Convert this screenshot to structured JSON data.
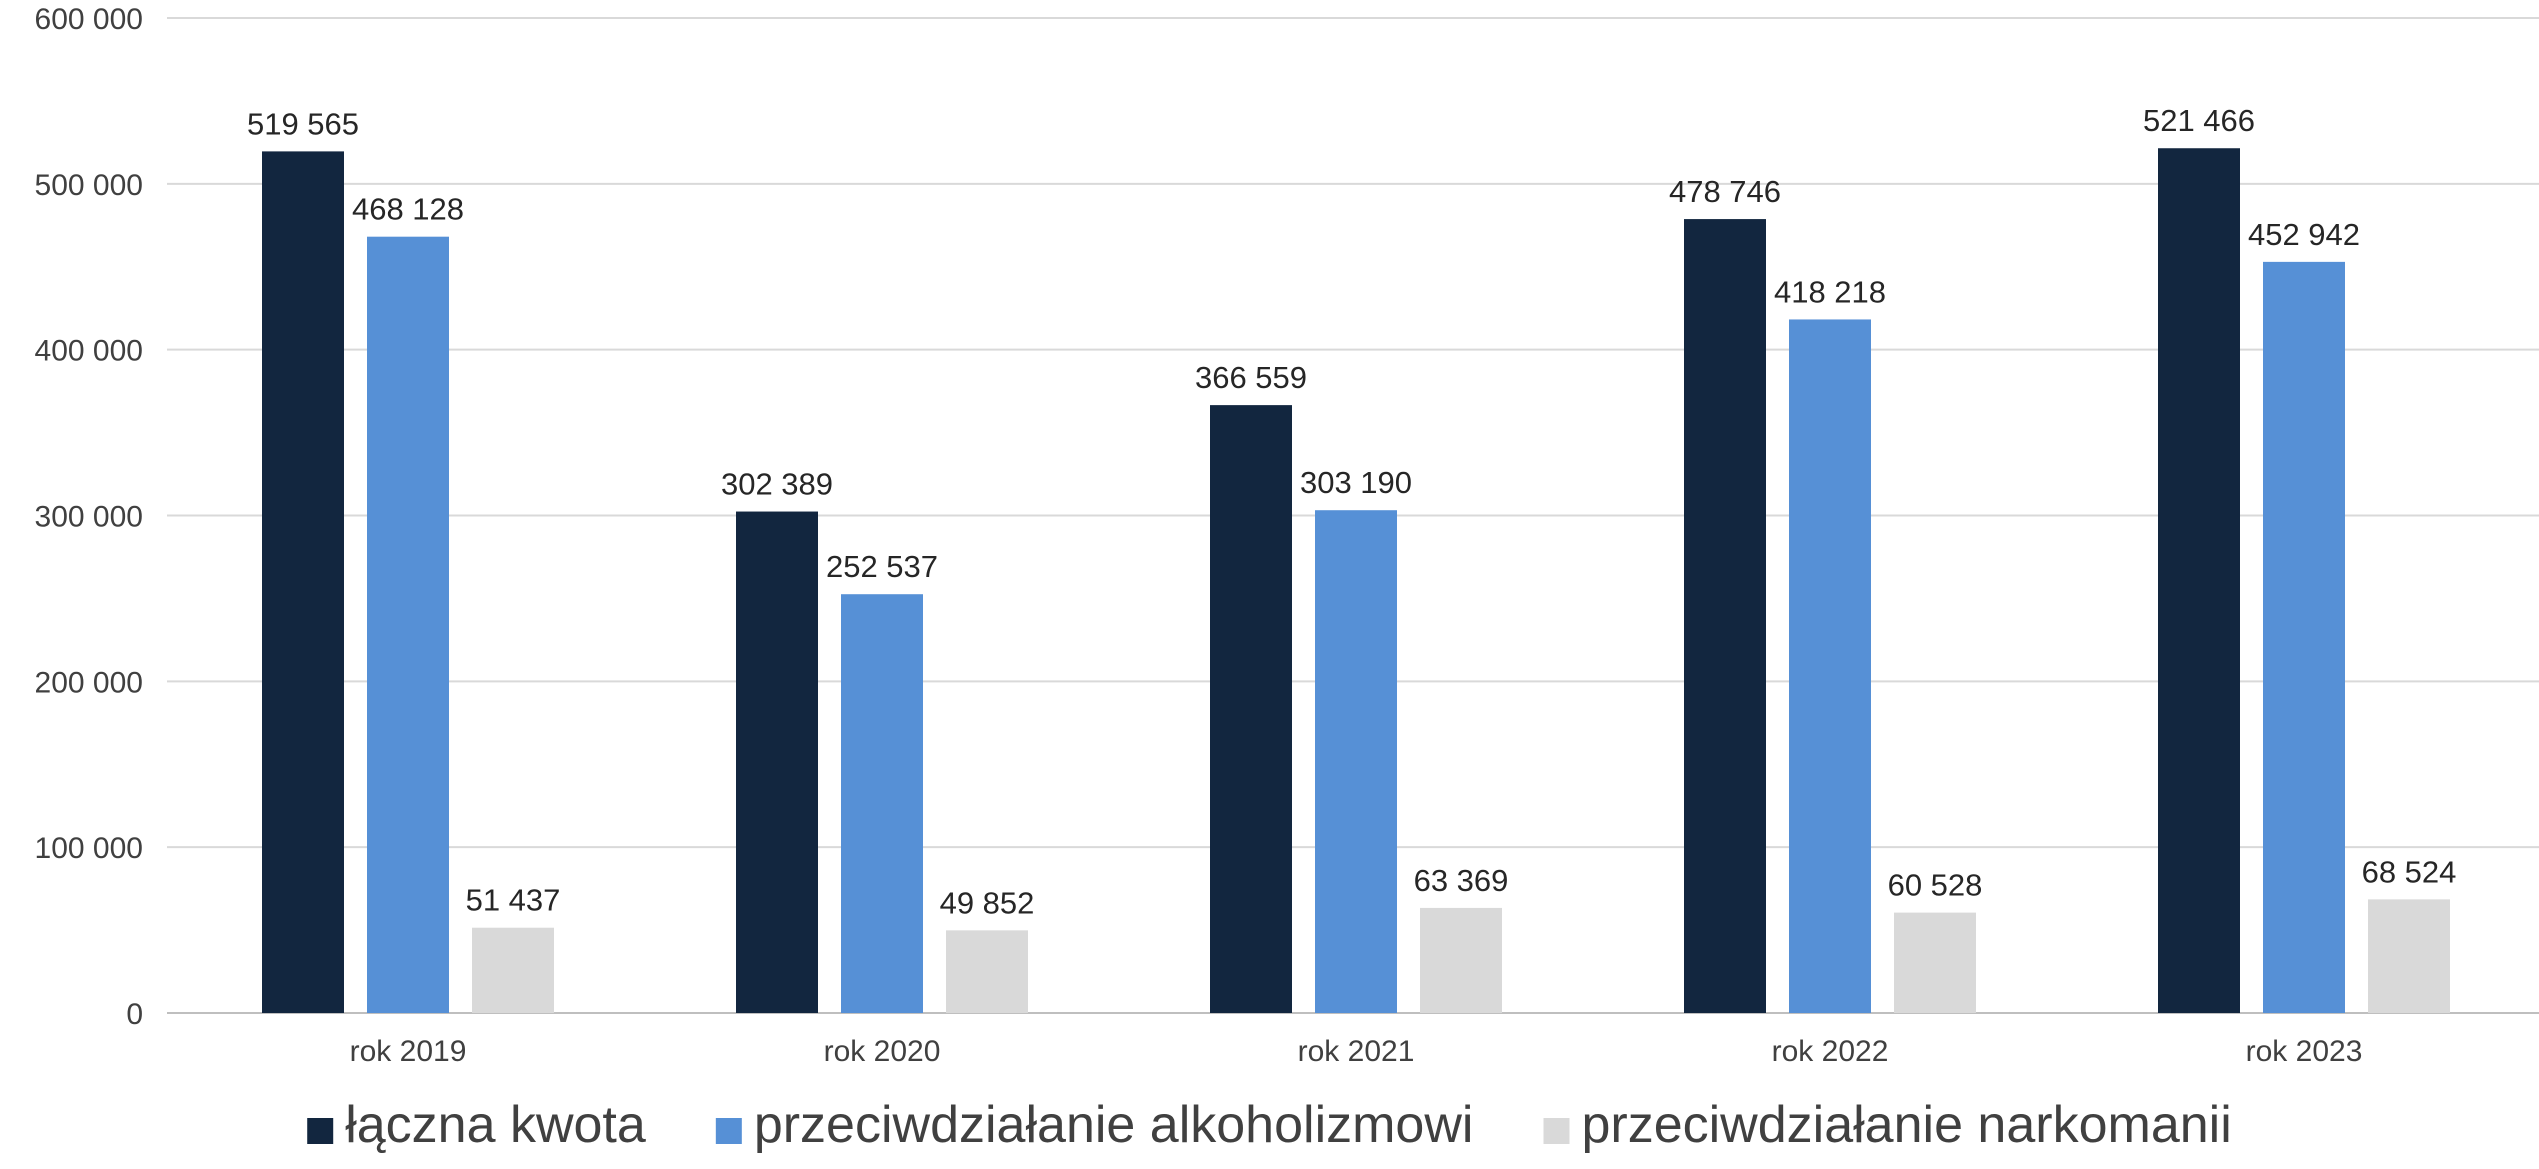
{
  "chart_data": {
    "type": "bar",
    "title": "",
    "xlabel": "",
    "ylabel": "",
    "categories": [
      "rok 2019",
      "rok 2020",
      "rok 2021",
      "rok 2022",
      "rok 2023"
    ],
    "series": [
      {
        "name": "łączna kwota",
        "color": "#12263f",
        "values": [
          519565,
          302389,
          366559,
          478746,
          521466
        ],
        "labels": [
          "519 565",
          "302 389",
          "366 559",
          "478 746",
          "521 466"
        ]
      },
      {
        "name": "przeciwdziałanie alkoholizmowi",
        "color": "#5690d6",
        "values": [
          468128,
          252537,
          303190,
          418218,
          452942
        ],
        "labels": [
          "468 128",
          "252 537",
          "303 190",
          "418 218",
          "452 942"
        ]
      },
      {
        "name": "przeciwdziałanie narkomanii",
        "color": "#d9d9d9",
        "values": [
          51437,
          49852,
          63369,
          60528,
          68524
        ],
        "labels": [
          "51 437",
          "49 852",
          "63 369",
          "60 528",
          "68 524"
        ]
      }
    ],
    "ylim": [
      0,
      600000
    ],
    "yticks": [
      0,
      100000,
      200000,
      300000,
      400000,
      500000,
      600000
    ],
    "ytick_labels": [
      "0",
      "100 000",
      "200 000",
      "300 000",
      "400 000",
      "500 000",
      "600 000"
    ],
    "grid": true,
    "legend_position": "bottom"
  }
}
